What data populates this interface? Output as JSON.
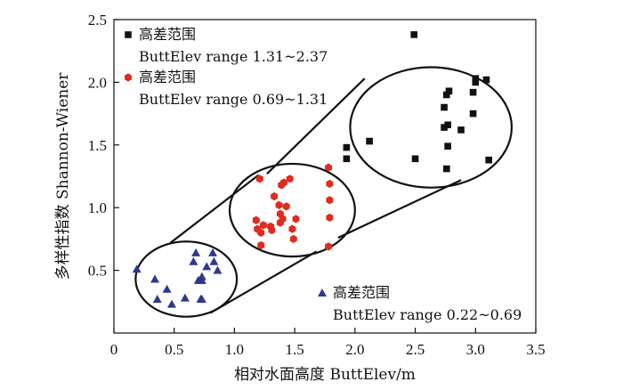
{
  "chart_data": {
    "type": "scatter",
    "title": "",
    "xlabel": "相对水面高度 ButtElev/m",
    "ylabel": "多样性指数 Shannon-Wiener",
    "xlim": [
      0,
      3.5
    ],
    "ylim": [
      0,
      2.5
    ],
    "xticks": [
      0,
      0.5,
      1.0,
      1.5,
      2.0,
      2.5,
      3.0,
      3.5
    ],
    "xtick_labels": [
      "0",
      "0.5",
      "1.0",
      "1.5",
      "2.0",
      "2.5",
      "3.0",
      "3.5"
    ],
    "yticks": [
      0.5,
      1.0,
      1.5,
      2.0,
      2.5
    ],
    "ytick_labels": [
      "0.5",
      "1.0",
      "1.5",
      "2.0",
      "2.5"
    ],
    "series": [
      {
        "name": "高差范围 ButtElev range 1.31~2.37",
        "legend_line1": "高差范围",
        "legend_line2": "ButtElev range 1.31~2.37",
        "marker": "square",
        "color": "#111111",
        "points": [
          [
            1.93,
            1.48
          ],
          [
            1.93,
            1.39
          ],
          [
            2.12,
            1.53
          ],
          [
            2.49,
            2.38
          ],
          [
            2.5,
            1.39
          ],
          [
            2.76,
            1.9
          ],
          [
            2.78,
            1.93
          ],
          [
            2.74,
            1.8
          ],
          [
            2.74,
            1.64
          ],
          [
            2.77,
            1.66
          ],
          [
            2.77,
            1.49
          ],
          [
            2.76,
            1.31
          ],
          [
            2.88,
            1.62
          ],
          [
            2.98,
            1.92
          ],
          [
            2.98,
            1.75
          ],
          [
            3.0,
            2.03
          ],
          [
            3.0,
            2.0
          ],
          [
            3.09,
            2.02
          ],
          [
            3.11,
            1.38
          ]
        ]
      },
      {
        "name": "高差范围 ButtElev range 0.69~1.31",
        "legend_line1": "高差范围",
        "legend_line2": "ButtElev range 0.69~1.31",
        "marker": "hexagon",
        "color": "#e02b1e",
        "points": [
          [
            1.18,
            0.9
          ],
          [
            1.21,
            1.23
          ],
          [
            1.19,
            0.83
          ],
          [
            1.22,
            0.8
          ],
          [
            1.22,
            0.7
          ],
          [
            1.24,
            0.86
          ],
          [
            1.3,
            0.85
          ],
          [
            1.31,
            0.82
          ],
          [
            1.33,
            1.09
          ],
          [
            1.37,
            1.02
          ],
          [
            1.38,
            0.88
          ],
          [
            1.4,
            0.91
          ],
          [
            1.38,
            0.95
          ],
          [
            1.39,
            1.18
          ],
          [
            1.41,
            1.2
          ],
          [
            1.43,
            1.01
          ],
          [
            1.46,
            1.23
          ],
          [
            1.48,
            0.83
          ],
          [
            1.49,
            0.75
          ],
          [
            1.51,
            0.91
          ],
          [
            1.78,
            1.32
          ],
          [
            1.79,
            1.19
          ],
          [
            1.79,
            1.06
          ],
          [
            1.79,
            0.92
          ],
          [
            1.78,
            0.69
          ]
        ]
      },
      {
        "name": "高差范围 ButtElev range 0.22~0.69",
        "legend_line1": "高差范围",
        "legend_line2": "ButtElev range 0.22~0.69",
        "marker": "triangle",
        "color": "#2d3a8c",
        "points": [
          [
            0.19,
            0.51
          ],
          [
            0.34,
            0.43
          ],
          [
            0.36,
            0.27
          ],
          [
            0.44,
            0.35
          ],
          [
            0.48,
            0.23
          ],
          [
            0.59,
            0.28
          ],
          [
            0.66,
            0.57
          ],
          [
            0.68,
            0.64
          ],
          [
            0.7,
            0.42
          ],
          [
            0.72,
            0.27
          ],
          [
            0.73,
            0.45
          ],
          [
            0.73,
            0.42
          ],
          [
            0.73,
            0.27
          ],
          [
            0.82,
            0.64
          ],
          [
            0.83,
            0.57
          ],
          [
            0.86,
            0.5
          ],
          [
            0.77,
            0.53
          ]
        ]
      }
    ],
    "annotation_circles": [
      {
        "cx": 0.6,
        "cy": 0.43,
        "rx": 0.42,
        "ry": 0.3
      },
      {
        "cx": 1.48,
        "cy": 0.98,
        "rx": 0.52,
        "ry": 0.37
      },
      {
        "cx": 2.63,
        "cy": 1.64,
        "rx": 0.67,
        "ry": 0.48
      }
    ],
    "annotation_tangent_lines": [
      [
        [
          0.47,
          0.72
        ],
        [
          1.2,
          1.26
        ]
      ],
      [
        [
          0.8,
          0.16
        ],
        [
          1.68,
          0.65
        ]
      ],
      [
        [
          1.27,
          1.27
        ],
        [
          2.08,
          2.03
        ]
      ],
      [
        [
          1.86,
          0.76
        ],
        [
          2.88,
          1.22
        ]
      ]
    ],
    "legend_positions": [
      "top-left",
      "top-left",
      "bottom-right"
    ]
  }
}
